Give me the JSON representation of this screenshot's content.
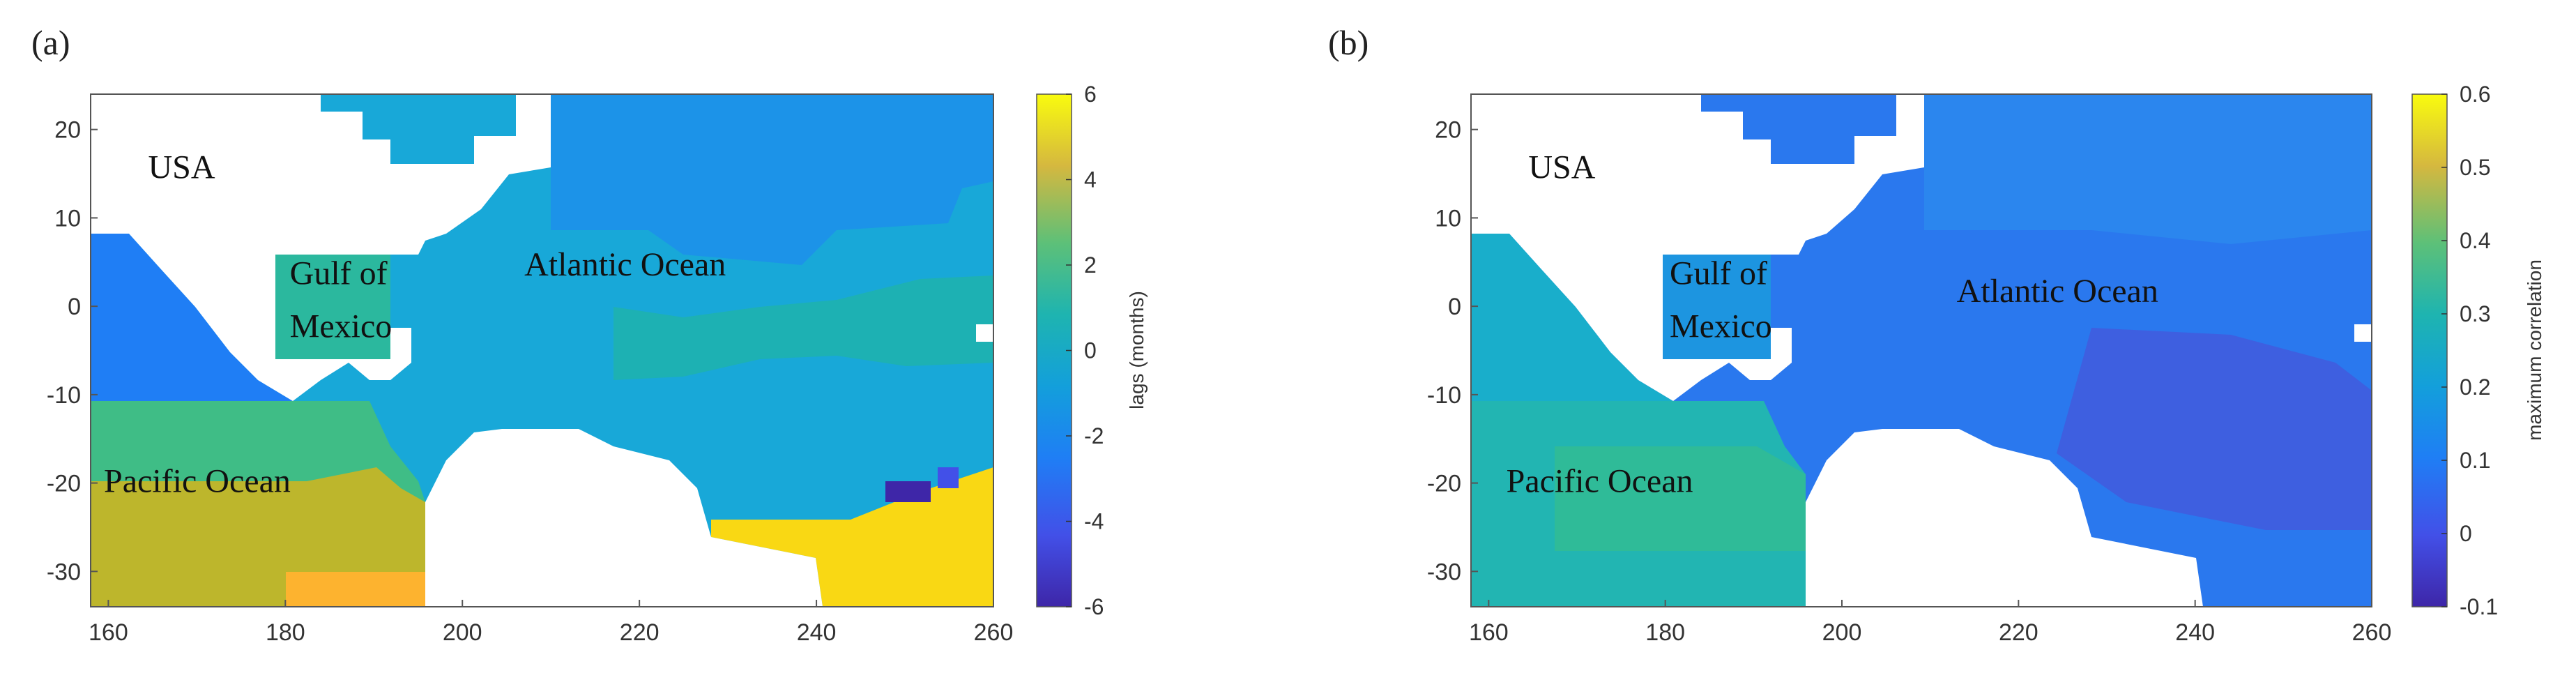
{
  "chart_data": [
    {
      "type": "heatmap",
      "panel_label": "(a)",
      "xlabel": "",
      "ylabel": "",
      "xlim": [
        158,
        260
      ],
      "ylim": [
        -34,
        24
      ],
      "x_ticks": [
        160,
        180,
        200,
        220,
        240,
        260
      ],
      "y_ticks": [
        20,
        10,
        0,
        -10,
        -20,
        -30
      ],
      "colorbar": {
        "label": "lags (months)",
        "range": [
          -6,
          6
        ],
        "ticks": [
          6,
          4,
          2,
          0,
          -2,
          -4,
          -6
        ]
      },
      "annotations": [
        {
          "text": "USA",
          "x": 164.5,
          "y": 14.5
        },
        {
          "text": "Gulf of",
          "x": 180.5,
          "y": 2.5
        },
        {
          "text": "Mexico",
          "x": 180.5,
          "y": -3.5
        },
        {
          "text": "Atlantic Ocean",
          "x": 207,
          "y": 3.5
        },
        {
          "text": "Pacific Ocean",
          "x": 159.5,
          "y": -21
        }
      ],
      "regions": [
        {
          "name": "atlantic-north",
          "value": -1.8
        },
        {
          "name": "atlantic-central",
          "value": -1.0
        },
        {
          "name": "atlantic-band",
          "value": 0.2
        },
        {
          "name": "gulf-of-mexico",
          "value": 0.5
        },
        {
          "name": "pacific-near-coast",
          "value": -2.0
        },
        {
          "name": "pacific-middle",
          "value": 1.2
        },
        {
          "name": "pacific-south",
          "value": 3.2
        },
        {
          "name": "pacific-southeast",
          "value": 4.0
        },
        {
          "name": "atlantic-southeast",
          "value": 5.0
        },
        {
          "name": "atlantic-southeast-low",
          "value": -5.5
        }
      ]
    },
    {
      "type": "heatmap",
      "panel_label": "(b)",
      "xlabel": "",
      "ylabel": "",
      "xlim": [
        158,
        260
      ],
      "ylim": [
        -34,
        24
      ],
      "x_ticks": [
        160,
        180,
        200,
        220,
        240,
        260
      ],
      "y_ticks": [
        20,
        10,
        0,
        -10,
        -20,
        -30
      ],
      "colorbar": {
        "label": "maximum correlation",
        "range": [
          -0.1,
          0.6
        ],
        "ticks": [
          0.6,
          0.5,
          0.4,
          0.3,
          0.2,
          0.1,
          0,
          -0.1
        ]
      },
      "annotations": [
        {
          "text": "USA",
          "x": 164.5,
          "y": 14.5
        },
        {
          "text": "Gulf of",
          "x": 180.5,
          "y": 2.5
        },
        {
          "text": "Mexico",
          "x": 180.5,
          "y": -3.5
        },
        {
          "text": "Atlantic Ocean",
          "x": 213,
          "y": 0.5
        },
        {
          "text": "Pacific Ocean",
          "x": 162,
          "y": -21
        }
      ],
      "regions": [
        {
          "name": "atlantic-north",
          "value": 0.12
        },
        {
          "name": "atlantic-central",
          "value": 0.1
        },
        {
          "name": "atlantic-southeast",
          "value": 0.05
        },
        {
          "name": "gulf-of-mexico",
          "value": 0.14
        },
        {
          "name": "pacific-near-coast",
          "value": 0.2
        },
        {
          "name": "pacific-middle",
          "value": 0.26
        },
        {
          "name": "pacific-south",
          "value": 0.3
        }
      ]
    }
  ]
}
